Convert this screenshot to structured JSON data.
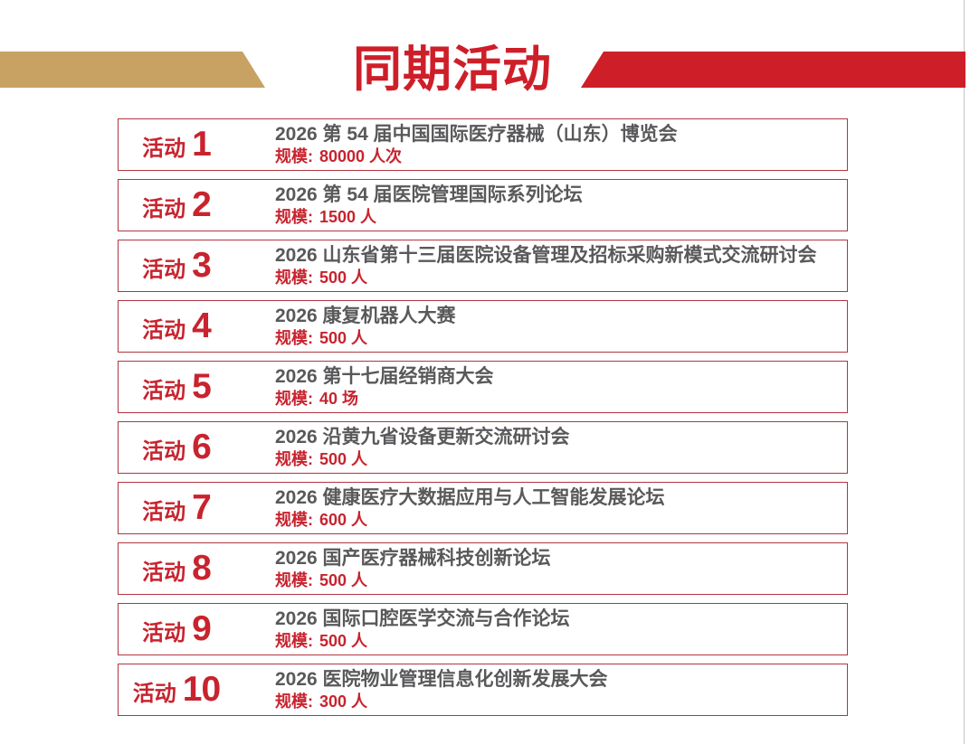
{
  "header": {
    "title": "同期活动"
  },
  "colors": {
    "red": "#ce1f29",
    "red_text": "#c8232e",
    "gold": "#c8a263",
    "title_gray": "#59595b",
    "box_border": "#b23540"
  },
  "activities": [
    {
      "label": "活动",
      "number": "1",
      "title": "2026 第 54 届中国国际医疗器械（山东）博览会",
      "scale_label": "规模:",
      "scale": "80000 人次"
    },
    {
      "label": "活动",
      "number": "2",
      "title": "2026 第 54 届医院管理国际系列论坛",
      "scale_label": "规模:",
      "scale": "1500 人"
    },
    {
      "label": "活动",
      "number": "3",
      "title": "2026 山东省第十三届医院设备管理及招标采购新模式交流研讨会",
      "scale_label": "规模:",
      "scale": "500 人"
    },
    {
      "label": "活动",
      "number": "4",
      "title": "2026 康复机器人大赛",
      "scale_label": "规模:",
      "scale": "500 人"
    },
    {
      "label": "活动",
      "number": "5",
      "title": "2026 第十七届经销商大会",
      "scale_label": "规模:",
      "scale": "40 场"
    },
    {
      "label": "活动",
      "number": "6",
      "title": "2026 沿黄九省设备更新交流研讨会",
      "scale_label": "规模:",
      "scale": "500 人"
    },
    {
      "label": "活动",
      "number": "7",
      "title": "2026 健康医疗大数据应用与人工智能发展论坛",
      "scale_label": "规模:",
      "scale": "600 人"
    },
    {
      "label": "活动",
      "number": "8",
      "title": "2026 国产医疗器械科技创新论坛",
      "scale_label": "规模:",
      "scale": "500 人"
    },
    {
      "label": "活动",
      "number": "9",
      "title": "2026 国际口腔医学交流与合作论坛",
      "scale_label": "规模:",
      "scale": "500 人"
    },
    {
      "label": "活动",
      "number": "10",
      "title": "2026 医院物业管理信息化创新发展大会",
      "scale_label": "规模:",
      "scale": "300 人"
    }
  ]
}
